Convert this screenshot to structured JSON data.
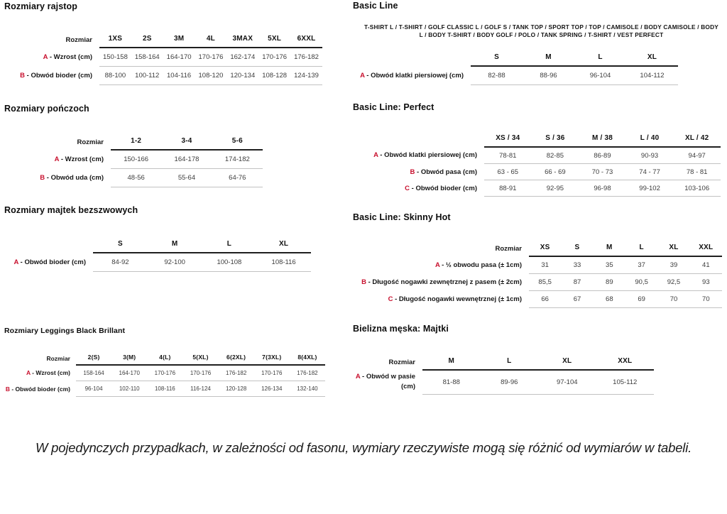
{
  "colors": {
    "accent_red": "#c8102e",
    "header_rule": "#1f1f1f",
    "row_rule": "#c2c2c2"
  },
  "footer": {
    "note": "W pojedynczych przypadkach, w zależności od fasonu, wymiary rzeczywiste mogą się różnić od wymiarów w tabeli."
  },
  "sections": {
    "rajstop": {
      "title": "Rozmiary rajstop",
      "corner": "Rozmiar",
      "columns": [
        "1XS",
        "2S",
        "3M",
        "4L",
        "3MAX",
        "5XL",
        "6XXL"
      ],
      "rows": [
        {
          "letter": "A",
          "label": "- Wzrost (cm)",
          "values": [
            "150-158",
            "158-164",
            "164-170",
            "170-176",
            "162-174",
            "170-176",
            "176-182"
          ]
        },
        {
          "letter": "B",
          "label": "- Obwód bioder (cm)",
          "values": [
            "88-100",
            "100-112",
            "104-116",
            "108-120",
            "120-134",
            "108-128",
            "124-139"
          ]
        }
      ]
    },
    "ponczoch": {
      "title": "Rozmiary pończoch",
      "corner": "Rozmiar",
      "columns": [
        "1-2",
        "3-4",
        "5-6"
      ],
      "rows": [
        {
          "letter": "A",
          "label": "- Wzrost (cm)",
          "values": [
            "150-166",
            "164-178",
            "174-182"
          ]
        },
        {
          "letter": "B",
          "label": "- Obwód uda (cm)",
          "values": [
            "48-56",
            "55-64",
            "64-76"
          ]
        }
      ]
    },
    "majtek": {
      "title": "Rozmiary majtek bezszwowych",
      "corner": "",
      "columns": [
        "S",
        "M",
        "L",
        "XL"
      ],
      "rows": [
        {
          "letter": "A",
          "label": "- Obwód bioder (cm)",
          "values": [
            "84-92",
            "92-100",
            "100-108",
            "108-116"
          ]
        }
      ]
    },
    "leggings": {
      "title": "Rozmiary Leggings Black Brillant",
      "corner": "Rozmiar",
      "columns": [
        "2(S)",
        "3(M)",
        "4(L)",
        "5(XL)",
        "6(2XL)",
        "7(3XL)",
        "8(4XL)"
      ],
      "rows": [
        {
          "letter": "A",
          "label": "- Wzrost (cm)",
          "values": [
            "158-164",
            "164-170",
            "170-176",
            "170-176",
            "176-182",
            "170-176",
            "176-182"
          ]
        },
        {
          "letter": "B",
          "label": "- Obwód bioder (cm)",
          "values": [
            "96-104",
            "102-110",
            "108-116",
            "116-124",
            "120-128",
            "126-134",
            "132-140"
          ]
        }
      ]
    },
    "basic": {
      "title": "Basic Line",
      "subtitle": "T-SHIRT L / T-SHIRT / GOLF CLASSIC L / GOLF S / TANK TOP / SPORT TOP / TOP / CAMISOLE / BODY CAMISOLE / BODY L / BODY T-SHIRT / BODY GOLF / POLO / TANK SPRING / T-SHIRT / VEST PERFECT",
      "corner": "",
      "columns": [
        "S",
        "M",
        "L",
        "XL"
      ],
      "rows": [
        {
          "letter": "A",
          "label": "- Obwód klatki piersiowej (cm)",
          "values": [
            "82-88",
            "88-96",
            "96-104",
            "104-112"
          ]
        }
      ]
    },
    "perfect": {
      "title": "Basic Line: Perfect",
      "corner": "",
      "columns": [
        "XS / 34",
        "S / 36",
        "M / 38",
        "L / 40",
        "XL / 42"
      ],
      "rows": [
        {
          "letter": "A",
          "label": "- Obwód klatki piersiowej (cm)",
          "values": [
            "78-81",
            "82-85",
            "86-89",
            "90-93",
            "94-97"
          ]
        },
        {
          "letter": "B",
          "label": "- Obwód pasa (cm)",
          "values": [
            "63 - 65",
            "66 - 69",
            "70 - 73",
            "74 - 77",
            "78 - 81"
          ]
        },
        {
          "letter": "C",
          "label": "- Obwód bioder (cm)",
          "values": [
            "88-91",
            "92-95",
            "96-98",
            "99-102",
            "103-106"
          ]
        }
      ]
    },
    "skinny": {
      "title": "Basic Line: Skinny Hot",
      "corner": "Rozmiar",
      "columns": [
        "XS",
        "S",
        "M",
        "L",
        "XL",
        "XXL"
      ],
      "rows": [
        {
          "letter": "A",
          "label": "- ½ obwodu pasa (± 1cm)",
          "values": [
            "31",
            "33",
            "35",
            "37",
            "39",
            "41"
          ]
        },
        {
          "letter": "B",
          "label": "- Długość nogawki zewnętrznej z pasem (± 2cm)",
          "values": [
            "85,5",
            "87",
            "89",
            "90,5",
            "92,5",
            "93"
          ]
        },
        {
          "letter": "C",
          "label": "- Długość nogawki wewnętrznej (± 1cm)",
          "values": [
            "66",
            "67",
            "68",
            "69",
            "70",
            "70"
          ]
        }
      ]
    },
    "majtki": {
      "title": "Bielizna męska: Majtki",
      "corner": "Rozmiar",
      "columns": [
        "M",
        "L",
        "XL",
        "XXL"
      ],
      "rows": [
        {
          "letter": "A",
          "label": "- Obwód w pasie (cm)",
          "values": [
            "81-88",
            "89-96",
            "97-104",
            "105-112"
          ]
        }
      ]
    }
  }
}
